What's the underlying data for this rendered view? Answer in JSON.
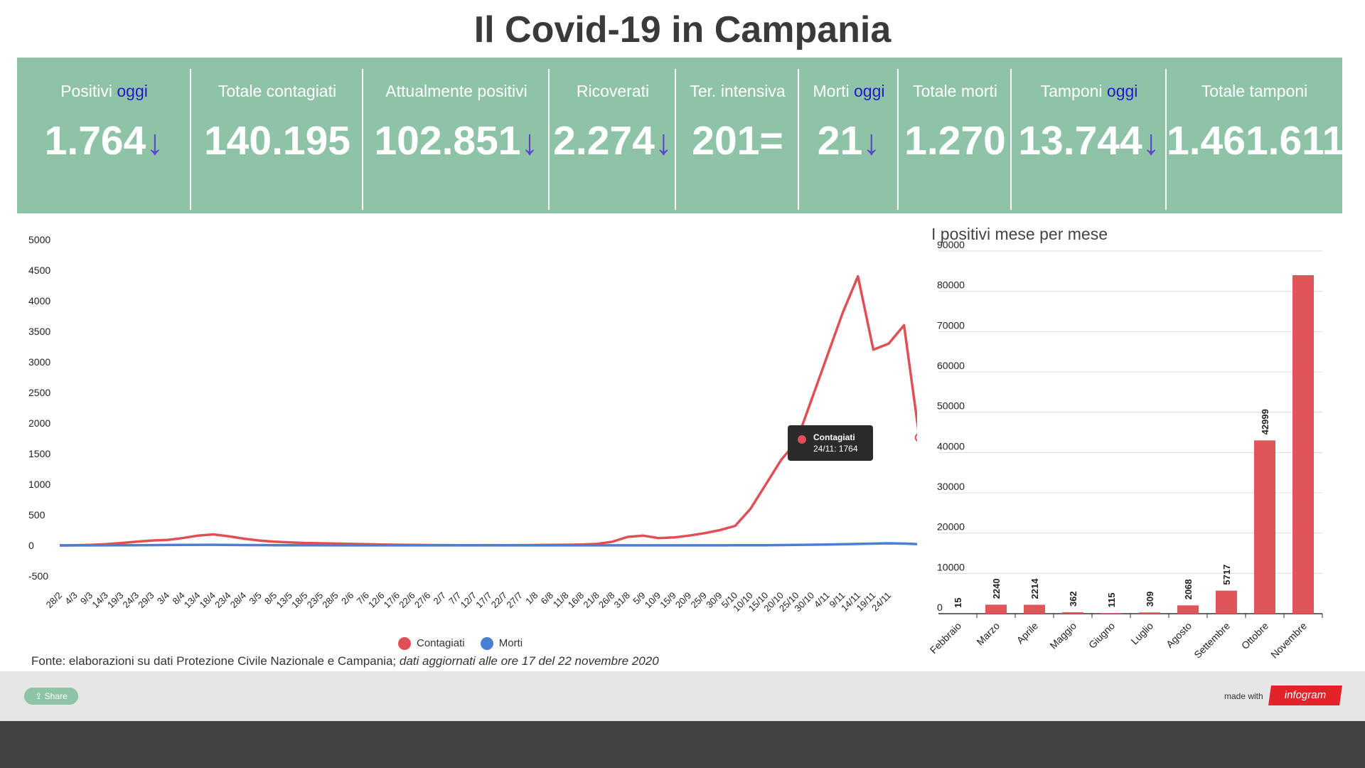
{
  "title": "Il Covid-19 in Campania",
  "kpis": [
    {
      "label": "Positivi",
      "oggi": "oggi",
      "value": "1.764",
      "trend": "down-arrow",
      "trend_symbol": "↓"
    },
    {
      "label": "Totale contagiati",
      "oggi": "",
      "value": "140.195",
      "trend": "",
      "trend_symbol": ""
    },
    {
      "label": "Attualmente positivi",
      "oggi": "",
      "value": "102.851",
      "trend": "down-arrow",
      "trend_symbol": "↓"
    },
    {
      "label": "Ricoverati",
      "oggi": "",
      "value": "2.274",
      "trend": "down-arrow",
      "trend_symbol": "↓"
    },
    {
      "label": "Ter. intensiva",
      "oggi": "",
      "value": "201",
      "trend": "equal",
      "trend_symbol": "="
    },
    {
      "label": "Morti",
      "oggi": "oggi",
      "value": "21",
      "trend": "down-arrow",
      "trend_symbol": "↓"
    },
    {
      "label": "Totale morti",
      "oggi": "",
      "value": "1.270",
      "trend": "",
      "trend_symbol": ""
    },
    {
      "label": "Tamponi",
      "oggi": "oggi",
      "value": "13.744",
      "trend": "down-arrow",
      "trend_symbol": "↓"
    },
    {
      "label": "Totale tamponi",
      "oggi": "",
      "value": "1.461.611",
      "trend": "",
      "trend_symbol": ""
    }
  ],
  "colors": {
    "kpi_bg": "#8fc3a8",
    "oggi": "#2419c9",
    "arrow": "#5a46c8",
    "contagiati": "#e04f55",
    "morti": "#4a7fd6",
    "bar": "#e0555a",
    "footer": "#e6e6e6",
    "bottom": "#424242",
    "infogram": "#e2232a"
  },
  "chart_data": [
    {
      "type": "line",
      "yticks": [
        "5000",
        "4500",
        "4000",
        "3500",
        "3000",
        "2500",
        "2000",
        "1500",
        "1000",
        "500",
        "0",
        "-500"
      ],
      "ylim": [
        -500,
        5000
      ],
      "x_tick_labels": [
        "28/2",
        "4/3",
        "9/3",
        "14/3",
        "19/3",
        "24/3",
        "29/3",
        "3/4",
        "8/4",
        "13/4",
        "18/4",
        "23/4",
        "28/4",
        "3/5",
        "8/5",
        "13/5",
        "18/5",
        "23/5",
        "28/5",
        "2/6",
        "7/6",
        "12/6",
        "17/6",
        "22/6",
        "27/6",
        "2/7",
        "7/7",
        "12/7",
        "17/7",
        "22/7",
        "27/7",
        "1/8",
        "6/8",
        "11/8",
        "16/8",
        "21/8",
        "26/8",
        "31/8",
        "5/9",
        "10/9",
        "15/9",
        "20/9",
        "25/9",
        "30/9",
        "5/10",
        "10/10",
        "15/10",
        "20/10",
        "25/10",
        "30/10",
        "4/11",
        "9/11",
        "14/11",
        "19/11",
        "24/11"
      ],
      "legend_position": "bottom",
      "series": [
        {
          "name": "Contagiati",
          "key": "contagiati",
          "points": [
            [
              0,
              0
            ],
            [
              1,
              3
            ],
            [
              2,
              8
            ],
            [
              3,
              20
            ],
            [
              4,
              40
            ],
            [
              5,
              60
            ],
            [
              6,
              80
            ],
            [
              7,
              90
            ],
            [
              8,
              120
            ],
            [
              9,
              160
            ],
            [
              10,
              180
            ],
            [
              11,
              150
            ],
            [
              12,
              110
            ],
            [
              13,
              80
            ],
            [
              14,
              60
            ],
            [
              15,
              50
            ],
            [
              16,
              40
            ],
            [
              17,
              35
            ],
            [
              18,
              30
            ],
            [
              19,
              25
            ],
            [
              20,
              20
            ],
            [
              21,
              15
            ],
            [
              22,
              10
            ],
            [
              23,
              8
            ],
            [
              24,
              6
            ],
            [
              25,
              5
            ],
            [
              26,
              4
            ],
            [
              27,
              4
            ],
            [
              28,
              5
            ],
            [
              29,
              4
            ],
            [
              30,
              5
            ],
            [
              31,
              6
            ],
            [
              32,
              8
            ],
            [
              33,
              10
            ],
            [
              34,
              15
            ],
            [
              35,
              25
            ],
            [
              36,
              60
            ],
            [
              37,
              140
            ],
            [
              38,
              160
            ],
            [
              39,
              120
            ],
            [
              40,
              130
            ],
            [
              41,
              160
            ],
            [
              42,
              200
            ],
            [
              43,
              250
            ],
            [
              44,
              320
            ],
            [
              45,
              600
            ],
            [
              46,
              1000
            ],
            [
              47,
              1400
            ],
            [
              48,
              1700
            ],
            [
              49,
              2400
            ],
            [
              50,
              3100
            ],
            [
              51,
              3800
            ],
            [
              52,
              4400
            ],
            [
              53,
              3200
            ],
            [
              54,
              3300
            ],
            [
              55,
              3600
            ],
            [
              56,
              1764
            ]
          ]
        },
        {
          "name": "Morti",
          "key": "morti",
          "points": [
            [
              0,
              0
            ],
            [
              5,
              3
            ],
            [
              8,
              8
            ],
            [
              10,
              10
            ],
            [
              12,
              6
            ],
            [
              14,
              3
            ],
            [
              20,
              1
            ],
            [
              30,
              1
            ],
            [
              40,
              1
            ],
            [
              44,
              2
            ],
            [
              46,
              4
            ],
            [
              48,
              8
            ],
            [
              50,
              15
            ],
            [
              52,
              25
            ],
            [
              54,
              35
            ],
            [
              55,
              30
            ],
            [
              56,
              21
            ]
          ]
        }
      ],
      "tooltip": {
        "series": "Contagiati",
        "text": "24/11: 1764"
      }
    },
    {
      "type": "bar",
      "title": "I positivi mese per mese",
      "categories": [
        "Febbraio",
        "Marzo",
        "Aprile",
        "Maggio",
        "Giugno",
        "Luglio",
        "Agosto",
        "Settembre",
        "Ottobre",
        "Novembre"
      ],
      "values": [
        15,
        2240,
        2214,
        362,
        115,
        309,
        2068,
        5717,
        42999,
        84000
      ],
      "value_labels": [
        "15",
        "2240",
        "2214",
        "362",
        "115",
        "309",
        "2068",
        "5717",
        "42999",
        ""
      ],
      "ylim": [
        0,
        90000
      ],
      "yticks": [
        "90000",
        "80000",
        "70000",
        "60000",
        "50000",
        "40000",
        "30000",
        "20000",
        "10000",
        "0"
      ]
    }
  ],
  "legend": [
    {
      "name": "Contagiati",
      "color": "#e04f55"
    },
    {
      "name": "Morti",
      "color": "#4a7fd6"
    }
  ],
  "source": {
    "text": "Fonte: elaborazioni su dati Protezione Civile Nazionale e Campania; ",
    "italic": "dati aggiornati alle ore 17 del 22 novembre 2020"
  },
  "footer": {
    "share_label": "Share",
    "made_with": "made with",
    "logo_text": "infogram"
  }
}
